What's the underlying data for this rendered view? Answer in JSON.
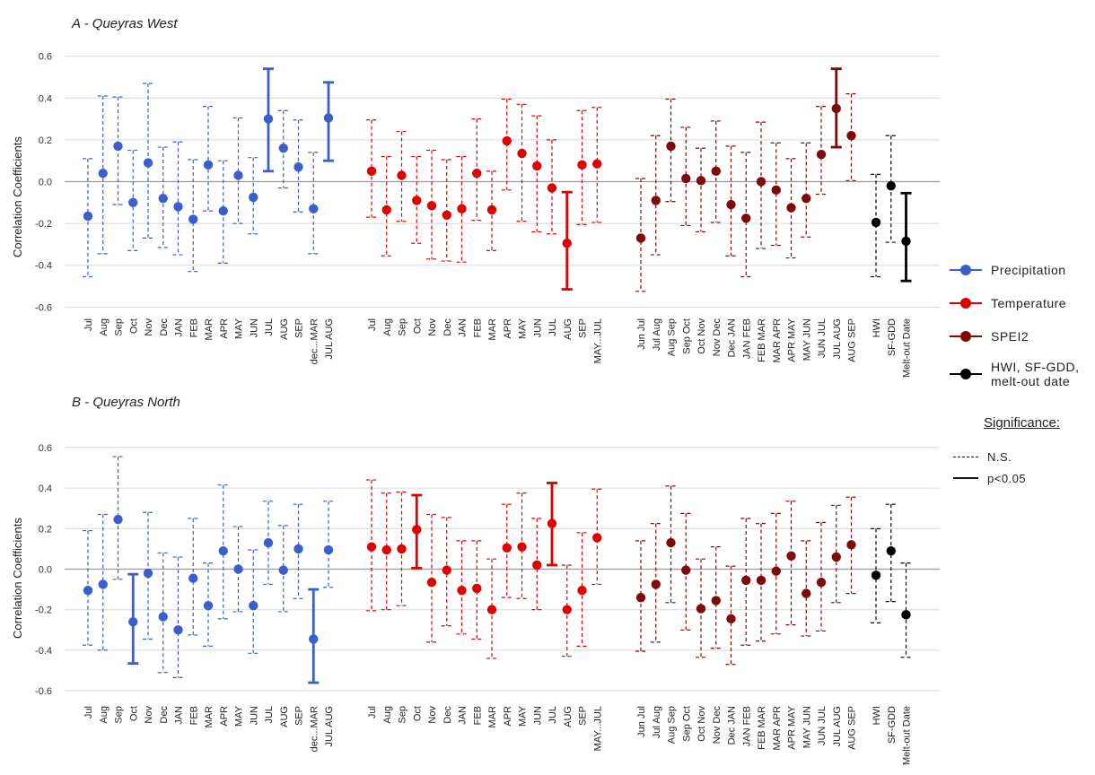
{
  "colors": {
    "precip": "#3a5fcd",
    "temp": "#e00000",
    "spei": "#7f0a0a",
    "other": "#000000",
    "grid": "#d9d9d9",
    "zero": "#9a9a9a"
  },
  "y_axis_label": "Correlation Coefficients",
  "legend": {
    "items": [
      {
        "label": "Precipitation",
        "color": "#3a5fcd"
      },
      {
        "label": "Temperature",
        "color": "#e00000"
      },
      {
        "label": "SPEI2",
        "color": "#7f0a0a"
      },
      {
        "label": "HWI, SF-GDD, melt-out date",
        "color": "#000000"
      }
    ],
    "significance_title": "Significance:",
    "ns_label": "N.S.",
    "sig_label": "p<0.05"
  },
  "chart_data": [
    {
      "type": "scatter",
      "title": "A - Queyras West",
      "ylabel": "Correlation Coefficients",
      "ylim": [
        -0.6,
        0.6
      ],
      "yticks": [
        -0.6,
        -0.4,
        -0.2,
        0.0,
        0.2,
        0.4,
        0.6
      ],
      "grid": true,
      "error_bars": true,
      "series": [
        {
          "name": "Precipitation",
          "color": "#3a5fcd",
          "labels": [
            "Jul",
            "Aug",
            "Sep",
            "Oct",
            "Nov",
            "Dec",
            "JAN",
            "FEB",
            "MAR",
            "APR",
            "MAY",
            "JUN",
            "JUL",
            "AUG",
            "SEP",
            "dec...MAR",
            "JUL AUG"
          ],
          "values": [
            -0.165,
            0.04,
            0.17,
            -0.1,
            0.09,
            -0.08,
            -0.12,
            -0.18,
            0.08,
            -0.14,
            0.03,
            -0.075,
            0.3,
            0.16,
            0.07,
            -0.13,
            0.305
          ],
          "upper": [
            0.11,
            0.41,
            0.405,
            0.15,
            0.47,
            0.165,
            0.19,
            0.105,
            0.36,
            0.1,
            0.305,
            0.115,
            0.54,
            0.34,
            0.295,
            0.14,
            0.475
          ],
          "lower": [
            -0.455,
            -0.345,
            -0.11,
            -0.33,
            -0.27,
            -0.315,
            -0.35,
            -0.43,
            -0.14,
            -0.39,
            -0.2,
            -0.25,
            0.05,
            -0.03,
            -0.145,
            -0.345,
            0.1
          ],
          "significant": [
            false,
            false,
            false,
            false,
            false,
            false,
            false,
            false,
            false,
            false,
            false,
            false,
            true,
            false,
            false,
            false,
            true
          ]
        },
        {
          "name": "Temperature",
          "color": "#e00000",
          "labels": [
            "Jul",
            "Aug",
            "Sep",
            "Oct",
            "Nov",
            "Dec",
            "JAN",
            "FEB",
            "MAR",
            "APR",
            "MAY",
            "JUN",
            "JUL",
            "AUG",
            "SEP",
            "MAY...JUL"
          ],
          "values": [
            0.05,
            -0.135,
            0.03,
            -0.09,
            -0.115,
            -0.16,
            -0.13,
            0.04,
            -0.135,
            0.195,
            0.135,
            0.075,
            -0.03,
            -0.295,
            0.08,
            0.085
          ],
          "upper": [
            0.295,
            0.12,
            0.24,
            0.12,
            0.15,
            0.105,
            0.12,
            0.3,
            0.05,
            0.395,
            0.37,
            0.315,
            0.2,
            -0.05,
            0.34,
            0.355
          ],
          "lower": [
            -0.17,
            -0.355,
            -0.19,
            -0.295,
            -0.37,
            -0.38,
            -0.385,
            -0.185,
            -0.33,
            -0.04,
            -0.19,
            -0.24,
            -0.25,
            -0.515,
            -0.205,
            -0.195
          ],
          "significant": [
            false,
            false,
            false,
            false,
            false,
            false,
            false,
            false,
            false,
            false,
            false,
            false,
            false,
            true,
            false,
            false
          ]
        },
        {
          "name": "SPEI2",
          "color": "#7f0a0a",
          "labels": [
            "Jun Jul",
            "Jul Aug",
            "Aug Sep",
            "Sep Oct",
            "Oct Nov",
            "Nov Dec",
            "Dec JAN",
            "JAN FEB",
            "FEB MAR",
            "MAR APR",
            "APR MAY",
            "MAY JUN",
            "JUN JUL",
            "JUL AUG",
            "AUG SEP"
          ],
          "values": [
            -0.27,
            -0.09,
            0.17,
            0.015,
            0.005,
            0.05,
            -0.11,
            -0.175,
            0.0,
            -0.04,
            -0.125,
            -0.08,
            0.13,
            0.35,
            0.22
          ],
          "upper": [
            0.015,
            0.22,
            0.395,
            0.26,
            0.16,
            0.29,
            0.17,
            0.14,
            0.285,
            0.185,
            0.11,
            0.185,
            0.36,
            0.54,
            0.42
          ],
          "lower": [
            -0.525,
            -0.35,
            -0.095,
            -0.21,
            -0.24,
            -0.195,
            -0.355,
            -0.455,
            -0.32,
            -0.305,
            -0.365,
            -0.265,
            -0.06,
            0.165,
            0.005
          ],
          "significant": [
            false,
            false,
            false,
            false,
            false,
            false,
            false,
            false,
            false,
            false,
            false,
            false,
            false,
            true,
            false
          ]
        },
        {
          "name": "HWI, SF-GDD, melt-out date",
          "color": "#000000",
          "labels": [
            "HWI",
            "SF-GDD",
            "Melt-out Date"
          ],
          "values": [
            -0.195,
            -0.02,
            -0.285
          ],
          "upper": [
            0.035,
            0.22,
            -0.055
          ],
          "lower": [
            -0.455,
            -0.29,
            -0.475
          ],
          "significant": [
            false,
            false,
            true
          ]
        }
      ]
    },
    {
      "type": "scatter",
      "title": "B - Queyras North",
      "ylabel": "Correlation Coefficients",
      "ylim": [
        -0.6,
        0.6
      ],
      "yticks": [
        -0.6,
        -0.4,
        -0.2,
        0.0,
        0.2,
        0.4,
        0.6
      ],
      "grid": true,
      "error_bars": true,
      "series": [
        {
          "name": "Precipitation",
          "color": "#3a5fcd",
          "labels": [
            "Jul",
            "Aug",
            "Sep",
            "Oct",
            "Nov",
            "Dec",
            "JAN",
            "FEB",
            "MAR",
            "APR",
            "MAY",
            "JUN",
            "JUL",
            "AUG",
            "SEP",
            "dec...MAR",
            "JUL AUG"
          ],
          "values": [
            -0.105,
            -0.075,
            0.245,
            -0.26,
            -0.02,
            -0.235,
            -0.3,
            -0.045,
            -0.18,
            0.09,
            0.0,
            -0.18,
            0.13,
            -0.005,
            0.1,
            -0.345,
            0.095
          ],
          "upper": [
            0.19,
            0.27,
            0.555,
            -0.025,
            0.28,
            0.08,
            0.06,
            0.25,
            0.03,
            0.415,
            0.21,
            0.095,
            0.335,
            0.215,
            0.32,
            -0.1,
            0.335
          ],
          "lower": [
            -0.375,
            -0.4,
            -0.05,
            -0.465,
            -0.345,
            -0.51,
            -0.535,
            -0.325,
            -0.38,
            -0.245,
            -0.21,
            -0.415,
            -0.075,
            -0.21,
            -0.145,
            -0.56,
            -0.09
          ],
          "significant": [
            false,
            false,
            false,
            true,
            false,
            false,
            false,
            false,
            false,
            false,
            false,
            false,
            false,
            false,
            false,
            true,
            false
          ]
        },
        {
          "name": "Temperature",
          "color": "#e00000",
          "labels": [
            "Jul",
            "Aug",
            "Sep",
            "Oct",
            "Nov",
            "Dec",
            "JAN",
            "FEB",
            "MAR",
            "APR",
            "MAY",
            "JUN",
            "JUL",
            "AUG",
            "SEP",
            "MAY...JUL"
          ],
          "values": [
            0.11,
            0.095,
            0.1,
            0.195,
            -0.065,
            -0.005,
            -0.105,
            -0.095,
            -0.2,
            0.105,
            0.11,
            0.02,
            0.225,
            -0.2,
            -0.105,
            0.155
          ],
          "upper": [
            0.44,
            0.375,
            0.38,
            0.365,
            0.27,
            0.255,
            0.14,
            0.14,
            0.05,
            0.32,
            0.375,
            0.25,
            0.425,
            0.02,
            0.18,
            0.395
          ],
          "lower": [
            -0.205,
            -0.2,
            -0.18,
            0.005,
            -0.36,
            -0.28,
            -0.32,
            -0.345,
            -0.44,
            -0.14,
            -0.145,
            -0.2,
            0.02,
            -0.43,
            -0.38,
            -0.075
          ],
          "significant": [
            false,
            false,
            false,
            true,
            false,
            false,
            false,
            false,
            false,
            false,
            false,
            false,
            true,
            false,
            false,
            false
          ]
        },
        {
          "name": "SPEI2",
          "color": "#7f0a0a",
          "labels": [
            "Jun Jul",
            "Jul Aug",
            "Aug Sep",
            "Sep Oct",
            "Oct Nov",
            "Nov Dec",
            "Dec JAN",
            "JAN FEB",
            "FEB MAR",
            "MAR APR",
            "APR MAY",
            "MAY JUN",
            "JUN JUL",
            "JUL AUG",
            "AUG SEP"
          ],
          "values": [
            -0.14,
            -0.075,
            0.13,
            -0.005,
            -0.195,
            -0.155,
            -0.245,
            -0.055,
            -0.055,
            -0.01,
            0.065,
            -0.12,
            -0.065,
            0.06,
            0.12
          ],
          "upper": [
            0.14,
            0.225,
            0.41,
            0.275,
            0.05,
            0.11,
            0.015,
            0.25,
            0.225,
            0.275,
            0.335,
            0.14,
            0.23,
            0.315,
            0.355
          ],
          "lower": [
            -0.405,
            -0.36,
            -0.165,
            -0.3,
            -0.435,
            -0.39,
            -0.47,
            -0.375,
            -0.355,
            -0.32,
            -0.275,
            -0.33,
            -0.305,
            -0.165,
            -0.12
          ],
          "significant": [
            false,
            false,
            false,
            false,
            false,
            false,
            false,
            false,
            false,
            false,
            false,
            false,
            false,
            false,
            false
          ]
        },
        {
          "name": "HWI, SF-GDD, melt-out date",
          "color": "#000000",
          "labels": [
            "HWI",
            "SF-GDD",
            "Melt-out Date"
          ],
          "values": [
            -0.03,
            0.09,
            -0.225
          ],
          "upper": [
            0.2,
            0.32,
            0.03
          ],
          "lower": [
            -0.265,
            -0.16,
            -0.435
          ],
          "significant": [
            false,
            false,
            false
          ]
        }
      ]
    }
  ]
}
